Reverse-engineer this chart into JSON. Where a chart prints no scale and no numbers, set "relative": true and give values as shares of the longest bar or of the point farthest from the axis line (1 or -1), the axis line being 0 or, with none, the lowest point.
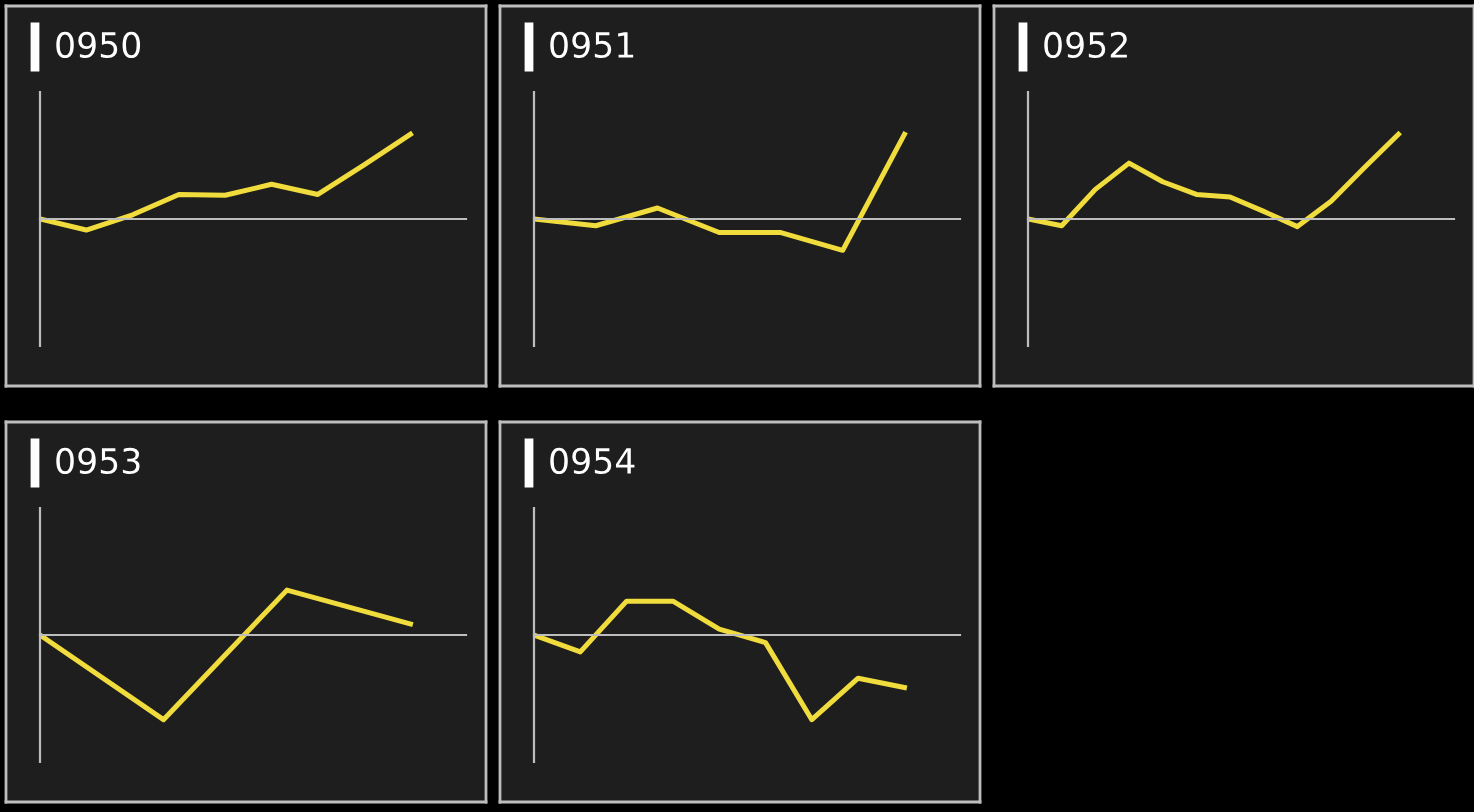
{
  "chart_data": [
    {
      "type": "line",
      "title": "0950",
      "categories": [
        null,
        null,
        null,
        null,
        null,
        null,
        null,
        null,
        null
      ],
      "values": [
        0,
        -0.13,
        0.05,
        0.29,
        0.28,
        0.41,
        0.29,
        0.64,
        1
      ],
      "relative": true,
      "color": "#f0dc3c"
    },
    {
      "type": "line",
      "title": "0951",
      "categories": [
        null,
        null,
        null,
        null,
        null,
        null,
        null
      ],
      "values": [
        0,
        -0.08,
        0.13,
        -0.16,
        -0.16,
        -0.37,
        1
      ],
      "relative": true,
      "color": "#f0dc3c"
    },
    {
      "type": "line",
      "title": "0952",
      "categories": [
        null,
        null,
        null,
        null,
        null,
        null,
        null,
        null,
        null,
        null,
        null,
        null
      ],
      "values": [
        0,
        -0.08,
        0.35,
        0.66,
        0.44,
        0.29,
        0.26,
        0.09,
        -0.09,
        0.21,
        0.61,
        1
      ],
      "relative": true,
      "color": "#f0dc3c"
    },
    {
      "type": "line",
      "title": "0953",
      "categories": [
        null,
        null,
        null,
        null
      ],
      "values": [
        0,
        -1,
        0.53,
        0.13
      ],
      "relative": true,
      "color": "#f0dc3c"
    },
    {
      "type": "line",
      "title": "0954",
      "categories": [
        null,
        null,
        null,
        null,
        null,
        null,
        null,
        null,
        null
      ],
      "values": [
        0,
        -0.2,
        0.4,
        0.4,
        0.07,
        -0.09,
        -1,
        -0.51,
        -0.62
      ],
      "relative": true,
      "color": "#f0dc3c"
    }
  ]
}
